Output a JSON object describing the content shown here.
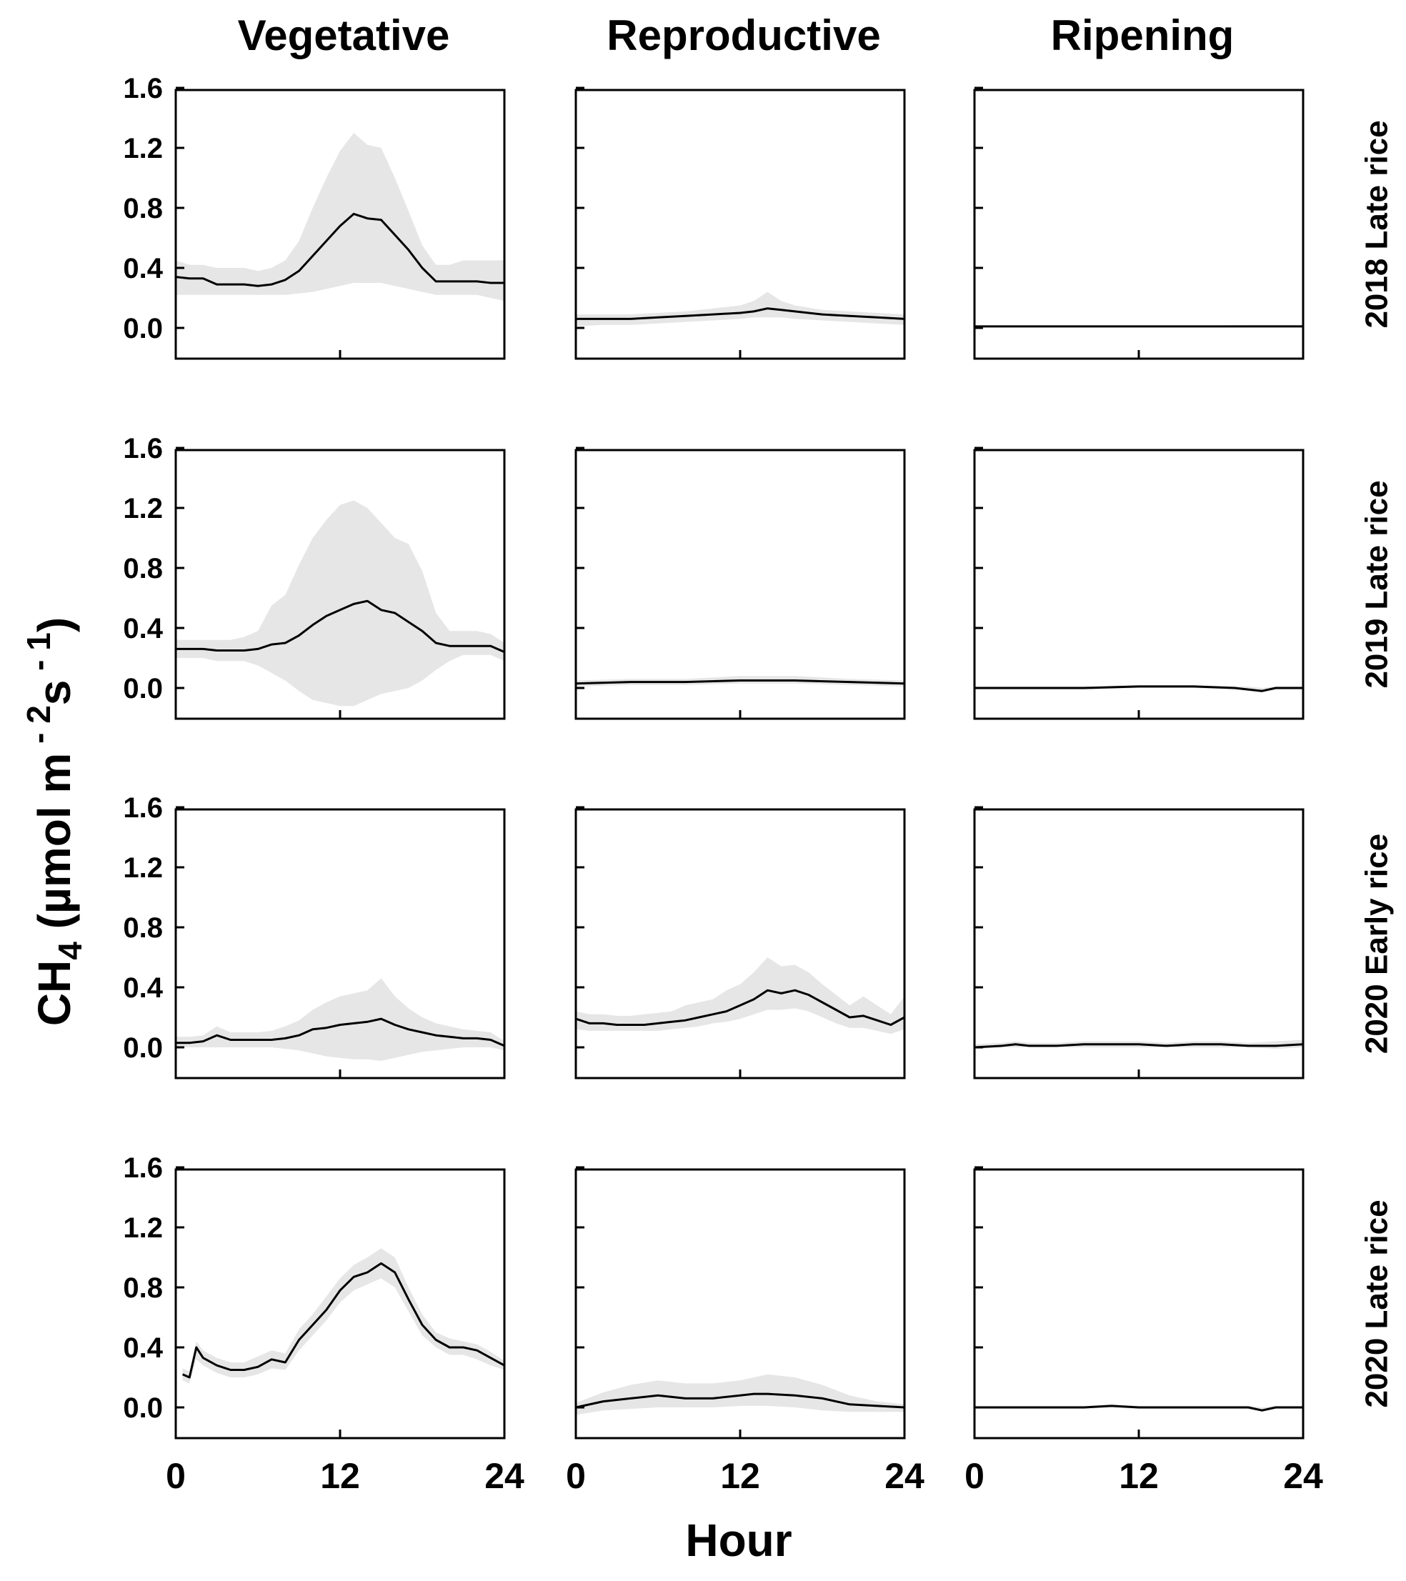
{
  "chart_data": {
    "type": "line",
    "title": "",
    "columns": [
      "Vegetative",
      "Reproductive",
      "Ripening"
    ],
    "rows": [
      "2018 Late rice",
      "2019 Late rice",
      "2020 Early rice",
      "2020 Late rice"
    ],
    "xlabel": "Hour",
    "ylabel": "CH4 (µmol m-2s-1)",
    "ylabel_parts": {
      "base": "CH",
      "sub": "4",
      "mid": " (µmol m",
      "exp1": " - 2",
      "s": "s",
      "exp2": " - 1",
      "end": ")"
    },
    "xlim": [
      0,
      24
    ],
    "ylim": [
      -0.2,
      1.6
    ],
    "x_ticks": [
      0,
      12,
      24
    ],
    "x_tick_labels": [
      "0",
      "12",
      "24"
    ],
    "y_ticks": [
      0.0,
      0.4,
      0.8,
      1.2,
      1.6
    ],
    "y_tick_labels": [
      "0.0",
      "0.4",
      "0.8",
      "1.2",
      "1.6"
    ],
    "grid": false,
    "legend": "none",
    "panels": [
      {
        "row": "2018 Late rice",
        "column": "Vegetative",
        "x": [
          0,
          1,
          2,
          3,
          4,
          5,
          6,
          7,
          8,
          9,
          10,
          11,
          12,
          13,
          14,
          15,
          16,
          17,
          18,
          19,
          20,
          21,
          22,
          23,
          24
        ],
        "mean": [
          0.34,
          0.33,
          0.33,
          0.29,
          0.29,
          0.29,
          0.28,
          0.29,
          0.32,
          0.38,
          0.48,
          0.58,
          0.68,
          0.76,
          0.73,
          0.72,
          0.62,
          0.52,
          0.4,
          0.31,
          0.31,
          0.31,
          0.31,
          0.3,
          0.3
        ],
        "lower": [
          0.22,
          0.22,
          0.22,
          0.22,
          0.22,
          0.22,
          0.22,
          0.22,
          0.22,
          0.23,
          0.24,
          0.26,
          0.28,
          0.3,
          0.3,
          0.3,
          0.28,
          0.26,
          0.24,
          0.22,
          0.22,
          0.22,
          0.22,
          0.2,
          0.18
        ],
        "upper": [
          0.45,
          0.42,
          0.42,
          0.4,
          0.4,
          0.4,
          0.38,
          0.4,
          0.45,
          0.58,
          0.8,
          1.0,
          1.18,
          1.3,
          1.22,
          1.2,
          1.0,
          0.78,
          0.55,
          0.42,
          0.42,
          0.45,
          0.45,
          0.45,
          0.45
        ]
      },
      {
        "row": "2018 Late rice",
        "column": "Reproductive",
        "x": [
          0,
          2,
          4,
          6,
          8,
          10,
          12,
          13,
          14,
          15,
          16,
          18,
          20,
          22,
          24
        ],
        "mean": [
          0.06,
          0.06,
          0.06,
          0.07,
          0.08,
          0.09,
          0.1,
          0.11,
          0.13,
          0.12,
          0.11,
          0.09,
          0.08,
          0.07,
          0.06
        ],
        "lower": [
          0.01,
          0.02,
          0.02,
          0.03,
          0.04,
          0.05,
          0.06,
          0.07,
          0.07,
          0.07,
          0.06,
          0.05,
          0.04,
          0.03,
          0.02
        ],
        "upper": [
          0.09,
          0.09,
          0.09,
          0.1,
          0.11,
          0.13,
          0.15,
          0.18,
          0.24,
          0.18,
          0.15,
          0.12,
          0.11,
          0.1,
          0.09
        ]
      },
      {
        "row": "2018 Late rice",
        "column": "Ripening",
        "x": [
          0,
          4,
          8,
          12,
          16,
          20,
          24
        ],
        "mean": [
          0.01,
          0.01,
          0.01,
          0.01,
          0.01,
          0.01,
          0.01
        ],
        "lower": [
          0.005,
          0.005,
          0.005,
          0.005,
          0.005,
          0.005,
          0.005
        ],
        "upper": [
          0.015,
          0.015,
          0.015,
          0.015,
          0.015,
          0.02,
          0.02
        ]
      },
      {
        "row": "2019 Late rice",
        "column": "Vegetative",
        "x": [
          0,
          1,
          2,
          3,
          4,
          5,
          6,
          7,
          8,
          9,
          10,
          11,
          12,
          13,
          14,
          15,
          16,
          17,
          18,
          19,
          20,
          21,
          22,
          23,
          24
        ],
        "mean": [
          0.26,
          0.26,
          0.26,
          0.25,
          0.25,
          0.25,
          0.26,
          0.29,
          0.3,
          0.35,
          0.42,
          0.48,
          0.52,
          0.56,
          0.58,
          0.52,
          0.5,
          0.44,
          0.38,
          0.3,
          0.28,
          0.28,
          0.28,
          0.28,
          0.24
        ],
        "lower": [
          0.2,
          0.2,
          0.2,
          0.18,
          0.18,
          0.18,
          0.15,
          0.1,
          0.05,
          -0.02,
          -0.08,
          -0.1,
          -0.12,
          -0.12,
          -0.08,
          -0.04,
          -0.02,
          0.0,
          0.05,
          0.12,
          0.18,
          0.22,
          0.22,
          0.22,
          0.18
        ],
        "upper": [
          0.32,
          0.32,
          0.32,
          0.32,
          0.32,
          0.34,
          0.38,
          0.55,
          0.62,
          0.82,
          1.0,
          1.12,
          1.22,
          1.25,
          1.2,
          1.1,
          1.0,
          0.96,
          0.78,
          0.5,
          0.38,
          0.38,
          0.38,
          0.36,
          0.3
        ]
      },
      {
        "row": "2019 Late rice",
        "column": "Reproductive",
        "x": [
          0,
          4,
          8,
          12,
          16,
          20,
          24
        ],
        "mean": [
          0.03,
          0.04,
          0.04,
          0.05,
          0.05,
          0.04,
          0.03
        ],
        "lower": [
          0.01,
          0.02,
          0.02,
          0.03,
          0.03,
          0.02,
          0.01
        ],
        "upper": [
          0.05,
          0.06,
          0.06,
          0.08,
          0.08,
          0.06,
          0.05
        ]
      },
      {
        "row": "2019 Late rice",
        "column": "Ripening",
        "x": [
          0,
          4,
          8,
          12,
          16,
          19,
          20,
          21,
          22,
          24
        ],
        "mean": [
          0.0,
          0.0,
          0.0,
          0.01,
          0.01,
          0.0,
          -0.01,
          -0.02,
          0.0,
          0.0
        ],
        "lower": [
          -0.01,
          -0.01,
          -0.01,
          0.0,
          0.0,
          -0.01,
          -0.02,
          -0.03,
          -0.01,
          -0.01
        ],
        "upper": [
          0.01,
          0.01,
          0.01,
          0.02,
          0.02,
          0.01,
          0.01,
          0.0,
          0.01,
          0.01
        ]
      },
      {
        "row": "2020 Early rice",
        "column": "Vegetative",
        "x": [
          0,
          1,
          2,
          3,
          4,
          5,
          6,
          7,
          8,
          9,
          10,
          11,
          12,
          13,
          14,
          15,
          16,
          17,
          18,
          19,
          20,
          21,
          22,
          23,
          24
        ],
        "mean": [
          0.03,
          0.03,
          0.04,
          0.08,
          0.05,
          0.05,
          0.05,
          0.05,
          0.06,
          0.08,
          0.12,
          0.13,
          0.15,
          0.16,
          0.17,
          0.19,
          0.15,
          0.12,
          0.1,
          0.08,
          0.07,
          0.06,
          0.06,
          0.05,
          0.01
        ],
        "lower": [
          0.0,
          0.0,
          0.0,
          0.0,
          0.0,
          0.0,
          0.0,
          0.0,
          -0.01,
          -0.02,
          -0.04,
          -0.06,
          -0.07,
          -0.08,
          -0.08,
          -0.09,
          -0.07,
          -0.05,
          -0.03,
          -0.02,
          -0.01,
          0.0,
          0.0,
          0.0,
          -0.02
        ],
        "upper": [
          0.07,
          0.07,
          0.08,
          0.14,
          0.1,
          0.1,
          0.1,
          0.11,
          0.14,
          0.18,
          0.25,
          0.3,
          0.34,
          0.36,
          0.38,
          0.46,
          0.34,
          0.26,
          0.2,
          0.16,
          0.14,
          0.12,
          0.11,
          0.1,
          0.04
        ]
      },
      {
        "row": "2020 Early rice",
        "column": "Reproductive",
        "x": [
          0,
          1,
          2,
          3,
          4,
          5,
          6,
          7,
          8,
          9,
          10,
          11,
          12,
          13,
          14,
          15,
          16,
          17,
          18,
          19,
          20,
          21,
          22,
          23,
          24
        ],
        "mean": [
          0.19,
          0.16,
          0.16,
          0.15,
          0.15,
          0.15,
          0.16,
          0.17,
          0.18,
          0.2,
          0.22,
          0.24,
          0.28,
          0.32,
          0.38,
          0.36,
          0.38,
          0.35,
          0.3,
          0.25,
          0.2,
          0.21,
          0.18,
          0.15,
          0.2
        ],
        "lower": [
          0.12,
          0.11,
          0.11,
          0.11,
          0.11,
          0.11,
          0.11,
          0.12,
          0.13,
          0.14,
          0.16,
          0.17,
          0.19,
          0.22,
          0.25,
          0.25,
          0.26,
          0.24,
          0.2,
          0.16,
          0.13,
          0.13,
          0.11,
          0.09,
          0.12
        ],
        "upper": [
          0.24,
          0.22,
          0.22,
          0.21,
          0.21,
          0.22,
          0.23,
          0.24,
          0.28,
          0.3,
          0.32,
          0.38,
          0.42,
          0.5,
          0.6,
          0.54,
          0.55,
          0.5,
          0.42,
          0.35,
          0.28,
          0.34,
          0.28,
          0.22,
          0.34
        ]
      },
      {
        "row": "2020 Early rice",
        "column": "Ripening",
        "x": [
          0,
          2,
          3,
          4,
          6,
          8,
          10,
          12,
          14,
          16,
          18,
          20,
          22,
          24
        ],
        "mean": [
          0.0,
          0.01,
          0.02,
          0.01,
          0.01,
          0.02,
          0.02,
          0.02,
          0.01,
          0.02,
          0.02,
          0.01,
          0.01,
          0.02
        ],
        "lower": [
          -0.01,
          0.0,
          0.0,
          0.0,
          0.0,
          0.0,
          0.0,
          0.0,
          0.0,
          0.0,
          0.0,
          0.0,
          -0.01,
          0.0
        ],
        "upper": [
          0.02,
          0.03,
          0.04,
          0.03,
          0.03,
          0.04,
          0.04,
          0.04,
          0.03,
          0.04,
          0.04,
          0.03,
          0.04,
          0.05
        ]
      },
      {
        "row": "2020 Late rice",
        "column": "Vegetative",
        "x": [
          0.5,
          1,
          1.5,
          2,
          3,
          4,
          5,
          6,
          7,
          8,
          9,
          10,
          11,
          12,
          13,
          14,
          15,
          16,
          17,
          18,
          19,
          20,
          21,
          22,
          23,
          24
        ],
        "mean": [
          0.22,
          0.2,
          0.4,
          0.33,
          0.28,
          0.25,
          0.25,
          0.27,
          0.32,
          0.3,
          0.45,
          0.55,
          0.65,
          0.78,
          0.87,
          0.9,
          0.96,
          0.9,
          0.72,
          0.55,
          0.45,
          0.4,
          0.4,
          0.38,
          0.33,
          0.28
        ],
        "lower": [
          0.18,
          0.16,
          0.32,
          0.28,
          0.23,
          0.2,
          0.2,
          0.22,
          0.26,
          0.25,
          0.38,
          0.48,
          0.58,
          0.7,
          0.78,
          0.82,
          0.86,
          0.8,
          0.64,
          0.48,
          0.4,
          0.35,
          0.35,
          0.32,
          0.28,
          0.25
        ],
        "upper": [
          0.26,
          0.24,
          0.44,
          0.38,
          0.33,
          0.3,
          0.3,
          0.34,
          0.38,
          0.36,
          0.52,
          0.62,
          0.74,
          0.86,
          0.95,
          1.0,
          1.06,
          1.0,
          0.8,
          0.62,
          0.5,
          0.46,
          0.44,
          0.42,
          0.37,
          0.31
        ]
      },
      {
        "row": "2020 Late rice",
        "column": "Reproductive",
        "x": [
          0,
          2,
          4,
          6,
          8,
          10,
          12,
          13,
          14,
          16,
          18,
          20,
          22,
          24
        ],
        "mean": [
          0.0,
          0.04,
          0.06,
          0.08,
          0.06,
          0.06,
          0.08,
          0.09,
          0.09,
          0.08,
          0.06,
          0.02,
          0.01,
          0.0
        ],
        "lower": [
          -0.05,
          -0.02,
          -0.01,
          0.0,
          0.0,
          0.0,
          0.01,
          0.01,
          0.01,
          0.0,
          -0.02,
          -0.03,
          -0.03,
          -0.03
        ],
        "upper": [
          0.03,
          0.1,
          0.15,
          0.18,
          0.16,
          0.16,
          0.18,
          0.2,
          0.22,
          0.2,
          0.15,
          0.08,
          0.04,
          0.02
        ]
      },
      {
        "row": "2020 Late rice",
        "column": "Ripening",
        "x": [
          0,
          4,
          8,
          10,
          12,
          16,
          20,
          21,
          22,
          24
        ],
        "mean": [
          0.0,
          0.0,
          0.0,
          0.01,
          0.0,
          0.0,
          0.0,
          -0.02,
          0.0,
          0.0
        ],
        "lower": [
          -0.01,
          -0.01,
          -0.01,
          0.0,
          -0.01,
          -0.01,
          -0.01,
          -0.03,
          -0.01,
          -0.01
        ],
        "upper": [
          0.01,
          0.01,
          0.01,
          0.02,
          0.01,
          0.01,
          0.01,
          0.0,
          0.01,
          0.01
        ]
      }
    ]
  }
}
